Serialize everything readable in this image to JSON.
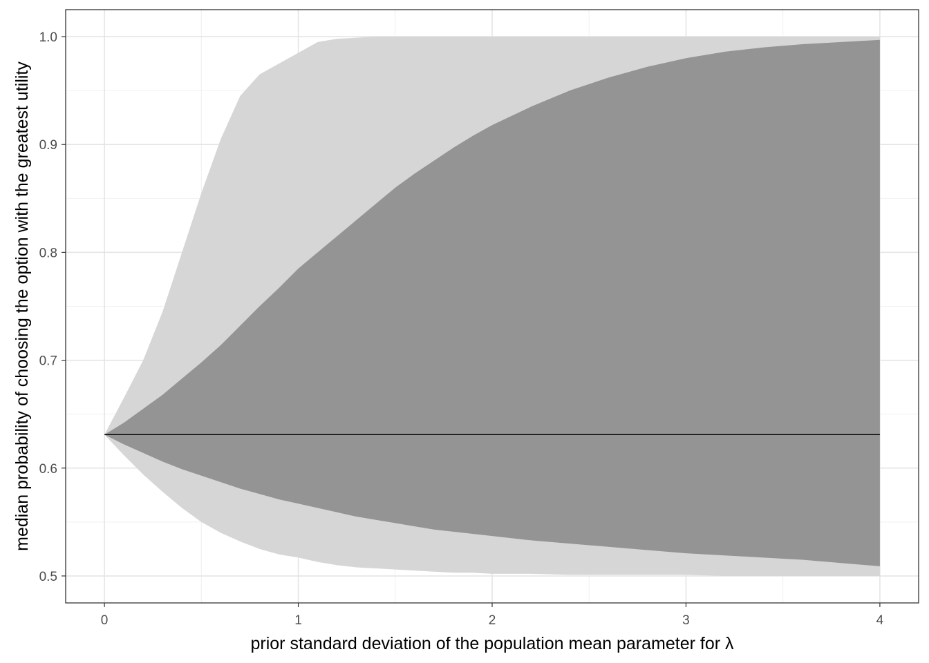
{
  "chart_data": {
    "type": "area",
    "xlabel": "prior standard deviation of the population mean parameter for λ",
    "ylabel": "median probability of choosing the option with the greatest utility",
    "xlim": [
      -0.2,
      4.2
    ],
    "ylim": [
      0.475,
      1.025
    ],
    "x_ticks": [
      0,
      1,
      2,
      3,
      4
    ],
    "x_tick_labels": [
      "0",
      "1",
      "2",
      "3",
      "4"
    ],
    "y_ticks": [
      0.5,
      0.6,
      0.7,
      0.8,
      0.9,
      1.0
    ],
    "y_tick_labels": [
      "0.5",
      "0.6",
      "0.7",
      "0.8",
      "0.9",
      "1.0"
    ],
    "x_minor_ticks": [
      0.5,
      1.5,
      2.5,
      3.5
    ],
    "y_minor_ticks": [
      0.55,
      0.65,
      0.75,
      0.85,
      0.95
    ],
    "grid": true,
    "x": [
      0,
      0.1,
      0.2,
      0.3,
      0.4,
      0.5,
      0.6,
      0.7,
      0.8,
      0.9,
      1.0,
      1.1,
      1.2,
      1.3,
      1.4,
      1.5,
      1.6,
      1.7,
      1.8,
      1.9,
      2.0,
      2.2,
      2.4,
      2.6,
      2.8,
      3.0,
      3.2,
      3.4,
      3.6,
      3.8,
      4.0
    ],
    "series": [
      {
        "role": "outer band",
        "color": "#d6d6d6",
        "upper": [
          0.631,
          0.665,
          0.7,
          0.745,
          0.8,
          0.855,
          0.905,
          0.945,
          0.965,
          0.975,
          0.985,
          0.995,
          0.998,
          0.999,
          1.0,
          1.0,
          1.0,
          1.0,
          1.0,
          1.0,
          1.0,
          1.0,
          1.0,
          1.0,
          1.0,
          1.0,
          1.0,
          1.0,
          1.0,
          1.0,
          1.0
        ],
        "lower": [
          0.631,
          0.612,
          0.594,
          0.578,
          0.563,
          0.55,
          0.54,
          0.532,
          0.525,
          0.52,
          0.517,
          0.513,
          0.51,
          0.508,
          0.507,
          0.506,
          0.505,
          0.504,
          0.503,
          0.503,
          0.502,
          0.502,
          0.501,
          0.501,
          0.501,
          0.501,
          0.5,
          0.5,
          0.5,
          0.5,
          0.5
        ]
      },
      {
        "role": "inner band",
        "color": "#949494",
        "upper": [
          0.631,
          0.642,
          0.655,
          0.668,
          0.683,
          0.698,
          0.714,
          0.732,
          0.75,
          0.767,
          0.785,
          0.8,
          0.815,
          0.83,
          0.845,
          0.86,
          0.873,
          0.885,
          0.897,
          0.908,
          0.918,
          0.935,
          0.95,
          0.962,
          0.972,
          0.98,
          0.986,
          0.99,
          0.993,
          0.995,
          0.997
        ],
        "lower": [
          0.631,
          0.622,
          0.614,
          0.606,
          0.599,
          0.593,
          0.587,
          0.581,
          0.576,
          0.571,
          0.567,
          0.563,
          0.559,
          0.555,
          0.552,
          0.549,
          0.546,
          0.543,
          0.541,
          0.539,
          0.537,
          0.533,
          0.53,
          0.527,
          0.524,
          0.521,
          0.519,
          0.517,
          0.515,
          0.512,
          0.509
        ]
      },
      {
        "role": "median line",
        "color": "#000000",
        "values": [
          0.631,
          0.631,
          0.631,
          0.631,
          0.631,
          0.631,
          0.631,
          0.631,
          0.631,
          0.631,
          0.631,
          0.631,
          0.631,
          0.631,
          0.631,
          0.631,
          0.631,
          0.631,
          0.631,
          0.631,
          0.631,
          0.631,
          0.631,
          0.631,
          0.631,
          0.631,
          0.631,
          0.631,
          0.631,
          0.631,
          0.631
        ]
      }
    ]
  }
}
